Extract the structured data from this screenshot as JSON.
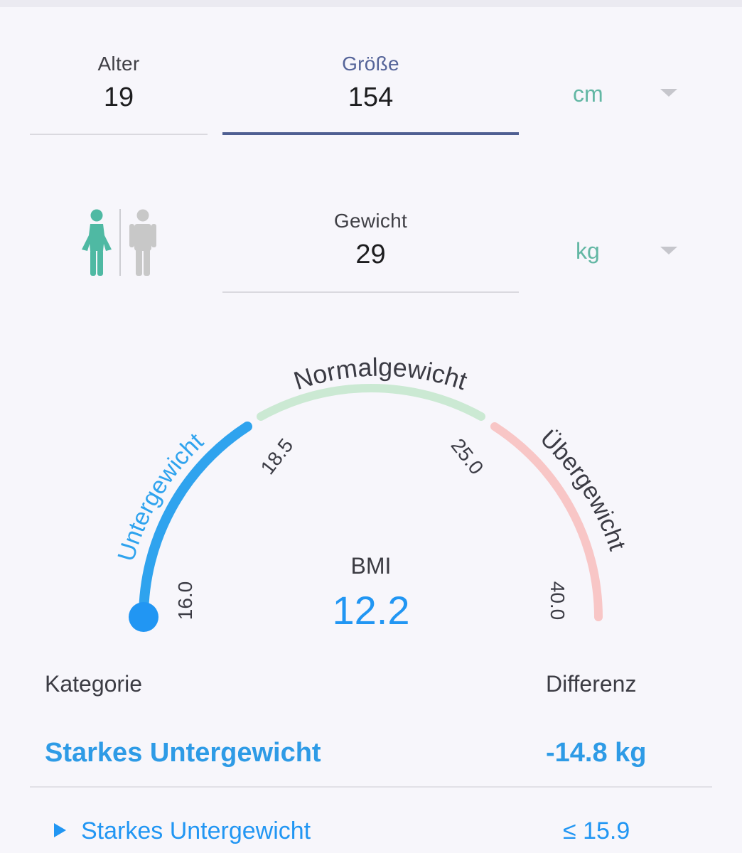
{
  "inputs": {
    "age": {
      "label": "Alter",
      "value": "19"
    },
    "height": {
      "label": "Größe",
      "value": "154",
      "unit": "cm"
    },
    "weight": {
      "label": "Gewicht",
      "value": "29",
      "unit": "kg"
    }
  },
  "gender": {
    "selected": "female",
    "options": [
      "female-icon",
      "male-icon"
    ]
  },
  "gauge": {
    "segments": [
      {
        "label": "Untergewicht",
        "color": "#2fa3ee"
      },
      {
        "label": "Normalgewicht",
        "color": "#cbe9d3"
      },
      {
        "label": "Übergewicht",
        "color": "#f8c6c6"
      }
    ],
    "ticks": [
      "16.0",
      "18.5",
      "25.0",
      "40.0"
    ]
  },
  "bmi": {
    "label": "BMI",
    "value": "12.2"
  },
  "result": {
    "category_header": "Kategorie",
    "difference_header": "Differenz",
    "category": "Starkes Untergewicht",
    "difference": "-14.8 kg"
  },
  "table": {
    "rows": [
      {
        "label": "Starkes Untergewicht",
        "range": "≤ 15.9"
      }
    ]
  },
  "colors": {
    "accent": "#2196f3",
    "unit": "#63b7a4",
    "active_underline": "#4f5f92"
  }
}
